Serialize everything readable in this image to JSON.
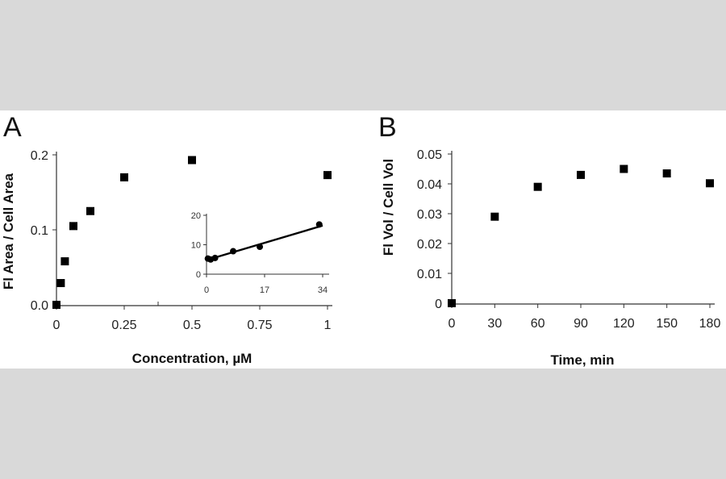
{
  "chart_data": [
    {
      "type": "scatter",
      "panel_label": "A",
      "xlabel": "Concentration, µM",
      "ylabel": "Fl Area / Cell Area",
      "xlim": [
        0,
        1
      ],
      "ylim": [
        0,
        0.2
      ],
      "xticks": [
        0,
        0.25,
        0.5,
        0.75,
        1
      ],
      "xtick_labels": [
        "0",
        "0.25",
        "0.5",
        "0.75",
        "1"
      ],
      "yticks": [
        0,
        0.1,
        0.2
      ],
      "ytick_labels": [
        "0.0",
        "0.1",
        "0.2"
      ],
      "marker": "square",
      "points": [
        {
          "x": 0,
          "y": 0.0
        },
        {
          "x": 0.016,
          "y": 0.029
        },
        {
          "x": 0.031,
          "y": 0.058
        },
        {
          "x": 0.0625,
          "y": 0.105
        },
        {
          "x": 0.125,
          "y": 0.125
        },
        {
          "x": 0.25,
          "y": 0.17
        },
        {
          "x": 0.5,
          "y": 0.193
        },
        {
          "x": 1,
          "y": 0.173
        }
      ],
      "inset": {
        "type": "scatter",
        "xlim": [
          0,
          34
        ],
        "ylim": [
          0,
          20
        ],
        "xticks": [
          0,
          17,
          34
        ],
        "xtick_labels": [
          "0",
          "17",
          "34"
        ],
        "yticks": [
          0,
          10,
          20
        ],
        "ytick_labels": [
          "0",
          "10",
          "20"
        ],
        "marker": "circle",
        "points": [
          {
            "x": 0.4,
            "y": 5.3
          },
          {
            "x": 1.2,
            "y": 5.0
          },
          {
            "x": 2.5,
            "y": 5.5
          },
          {
            "x": 7.8,
            "y": 7.8
          },
          {
            "x": 15.6,
            "y": 9.3
          },
          {
            "x": 33,
            "y": 16.9
          }
        ],
        "fit_line": {
          "x": [
            0,
            34
          ],
          "y": [
            4.8,
            16.5
          ]
        }
      }
    },
    {
      "type": "scatter",
      "panel_label": "B",
      "xlabel": "Time, min",
      "ylabel": "Fl Vol / Cell Vol",
      "xlim": [
        0,
        180
      ],
      "ylim": [
        0,
        0.05
      ],
      "xticks": [
        0,
        30,
        60,
        90,
        120,
        150,
        180
      ],
      "xtick_labels": [
        "0",
        "30",
        "60",
        "90",
        "120",
        "150",
        "180"
      ],
      "yticks": [
        0,
        0.01,
        0.02,
        0.03,
        0.04,
        0.05
      ],
      "ytick_labels": [
        "0",
        "0.01",
        "0.02",
        "0.03",
        "0.04",
        "0.05"
      ],
      "marker": "square",
      "points": [
        {
          "x": 0,
          "y": 0.0
        },
        {
          "x": 30,
          "y": 0.029
        },
        {
          "x": 60,
          "y": 0.039
        },
        {
          "x": 90,
          "y": 0.043
        },
        {
          "x": 120,
          "y": 0.045
        },
        {
          "x": 150,
          "y": 0.0435
        },
        {
          "x": 180,
          "y": 0.0402
        }
      ]
    }
  ]
}
